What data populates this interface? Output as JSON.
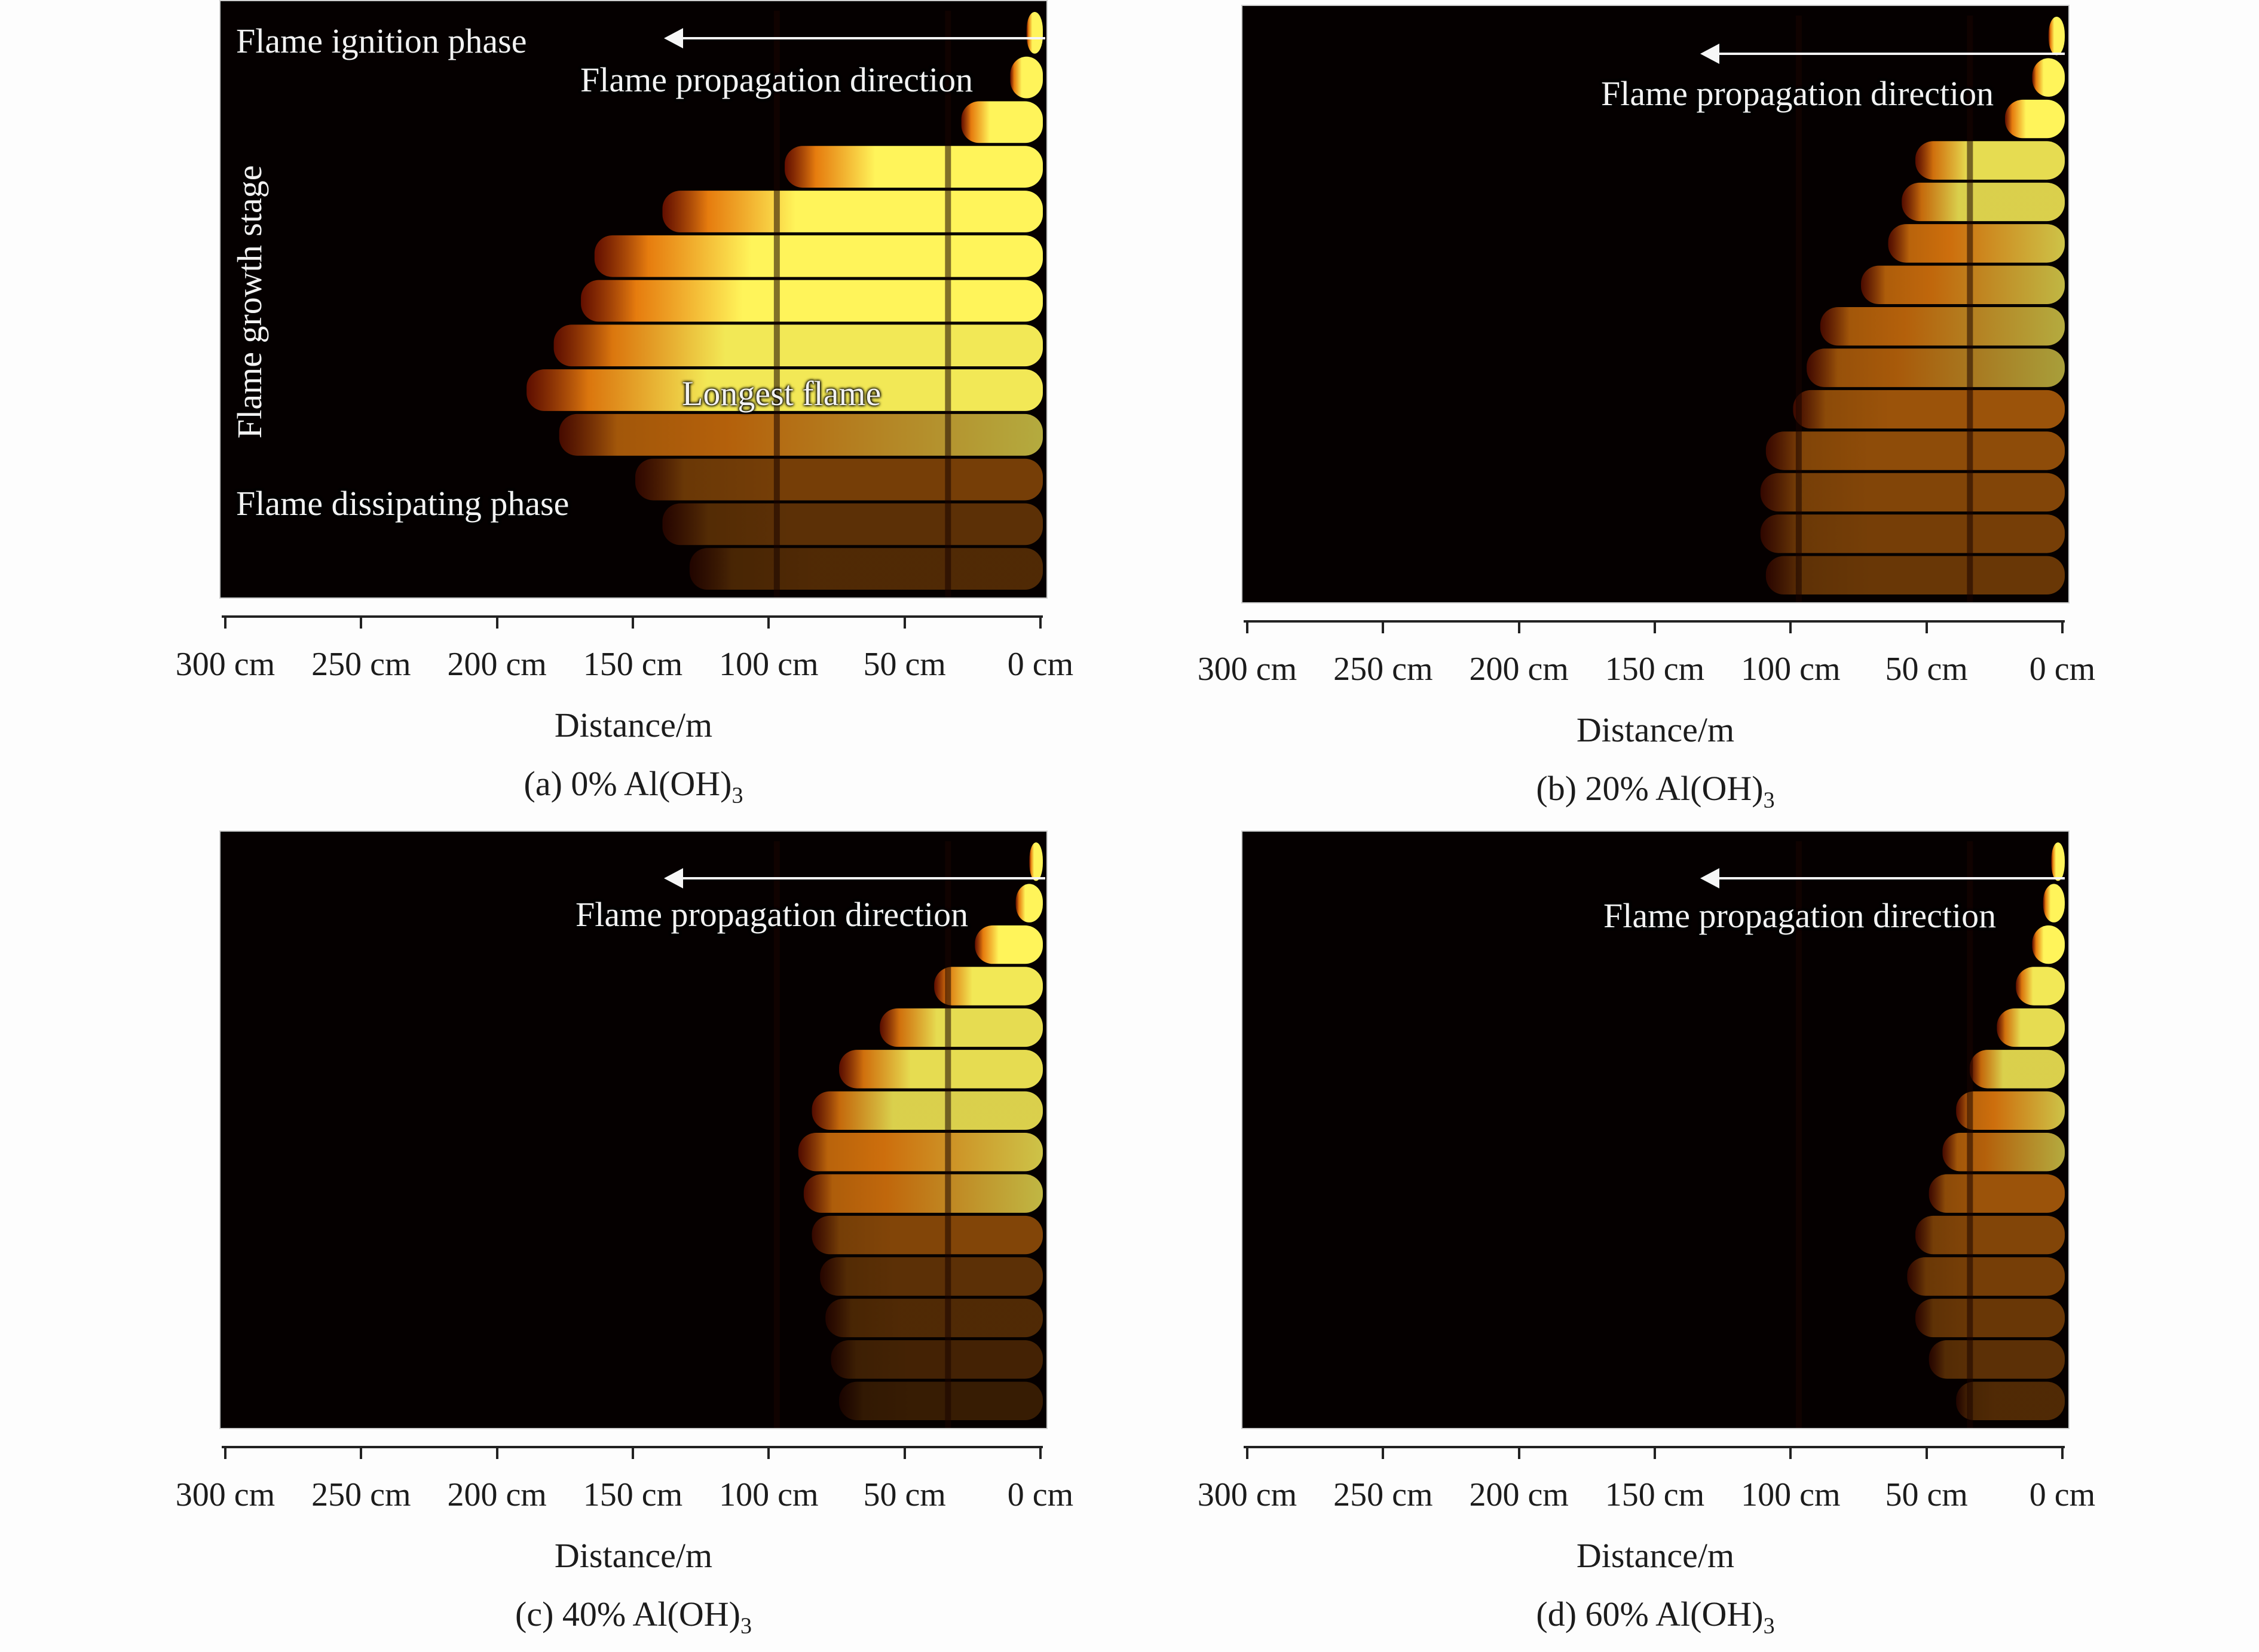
{
  "colors": {
    "flame_core": "#fff45a",
    "flame_mid": "#ff8a10",
    "flame_edge": "#8a1500",
    "background": "#050000"
  },
  "axis_ticks": [
    "300 cm",
    "250 cm",
    "200 cm",
    "150 cm",
    "100 cm",
    "50 cm",
    "0 cm"
  ],
  "axis_title": "Distance/m",
  "panels": [
    {
      "caption": {
        "prefix": "(a) 0% Al(OH)",
        "sub": "3"
      },
      "overlay": {
        "ignition": "Flame ignition phase",
        "propagation": "Flame propagation direction",
        "growth": "Flame growth stage",
        "longest": "Longest flame",
        "dissipating": "Flame dissipating phase"
      },
      "flame_lengths_cm": [
        6,
        12,
        30,
        95,
        140,
        165,
        170,
        180,
        190,
        178,
        150,
        140,
        130
      ],
      "intensity": [
        1.0,
        1.0,
        1.0,
        1.0,
        1.0,
        1.0,
        1.0,
        0.95,
        0.95,
        0.7,
        0.45,
        0.35,
        0.3
      ]
    },
    {
      "caption": {
        "prefix": "(b) 20% Al(OH)",
        "sub": "3"
      },
      "overlay": {
        "propagation": "Flame propagation direction"
      },
      "flame_lengths_cm": [
        6,
        12,
        22,
        55,
        60,
        65,
        75,
        90,
        95,
        100,
        110,
        112,
        112,
        110
      ],
      "intensity": [
        1.0,
        1.0,
        1.0,
        0.9,
        0.85,
        0.8,
        0.75,
        0.7,
        0.65,
        0.6,
        0.55,
        0.5,
        0.45,
        0.4
      ]
    },
    {
      "caption": {
        "prefix": "(c) 40% Al(OH)",
        "sub": "3"
      },
      "overlay": {
        "propagation": "Flame propagation direction"
      },
      "flame_lengths_cm": [
        5,
        10,
        25,
        40,
        60,
        75,
        85,
        90,
        88,
        85,
        82,
        80,
        78,
        75
      ],
      "intensity": [
        1.0,
        1.0,
        1.0,
        0.95,
        0.9,
        0.9,
        0.85,
        0.8,
        0.75,
        0.5,
        0.35,
        0.3,
        0.25,
        0.2
      ]
    },
    {
      "caption": {
        "prefix": "(d) 60% Al(OH)",
        "sub": "3"
      },
      "overlay": {
        "propagation": "Flame propagation direction"
      },
      "flame_lengths_cm": [
        5,
        8,
        12,
        18,
        25,
        35,
        40,
        45,
        50,
        55,
        58,
        55,
        50,
        40
      ],
      "intensity": [
        1.0,
        1.0,
        1.0,
        0.95,
        0.9,
        0.85,
        0.8,
        0.7,
        0.6,
        0.5,
        0.45,
        0.4,
        0.35,
        0.3
      ]
    }
  ]
}
